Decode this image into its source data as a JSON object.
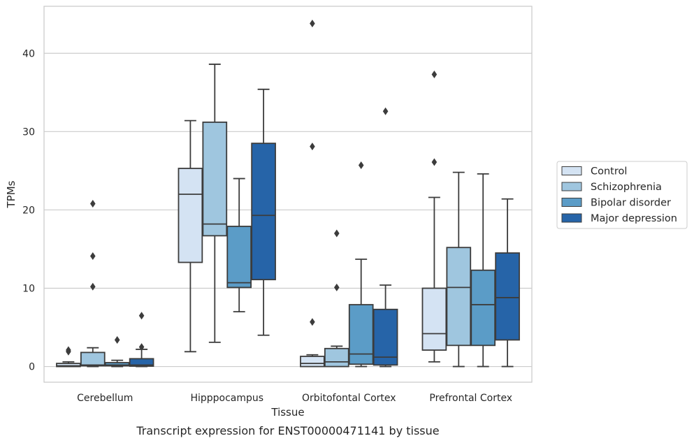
{
  "chart_data": {
    "type": "boxplot",
    "caption": "Transcript expression for ENST00000471141 by tissue",
    "xlabel": "Tissue",
    "ylabel": "TPMs",
    "ylim": [
      -2,
      46
    ],
    "yticks": [
      0,
      10,
      20,
      30,
      40
    ],
    "grid": "horizontal",
    "legend_position": "right",
    "categories": [
      "Cerebellum",
      "Hipppocampus",
      "Orbitofontal Cortex",
      "Prefrontal Cortex"
    ],
    "series": [
      {
        "name": "Control",
        "color": "#d4e3f3",
        "boxes": [
          {
            "whislo": 0,
            "q1": 0,
            "med": 0.1,
            "q3": 0.4,
            "whishi": 0.6,
            "fliers": [
              1.9,
              2.1
            ]
          },
          {
            "whislo": 1.9,
            "q1": 13.3,
            "med": 22.0,
            "q3": 25.3,
            "whishi": 31.4,
            "fliers": []
          },
          {
            "whislo": 0,
            "q1": 0,
            "med": 0.4,
            "q3": 1.3,
            "whishi": 1.5,
            "fliers": [
              5.7,
              28.1,
              43.8
            ]
          },
          {
            "whislo": 0.6,
            "q1": 2.1,
            "med": 4.2,
            "q3": 10.0,
            "whishi": 21.6,
            "fliers": [
              26.1,
              37.3
            ]
          }
        ]
      },
      {
        "name": "Schizophrenia",
        "color": "#9fc6df",
        "boxes": [
          {
            "whislo": 0,
            "q1": 0.1,
            "med": 0.2,
            "q3": 1.8,
            "whishi": 2.4,
            "fliers": [
              10.2,
              14.1,
              20.8
            ]
          },
          {
            "whislo": 3.1,
            "q1": 16.7,
            "med": 18.2,
            "q3": 31.2,
            "whishi": 38.6,
            "fliers": []
          },
          {
            "whislo": 0,
            "q1": 0,
            "med": 0.6,
            "q3": 2.3,
            "whishi": 2.6,
            "fliers": [
              10.1,
              17.0
            ]
          },
          {
            "whislo": 0,
            "q1": 2.7,
            "med": 10.1,
            "q3": 15.2,
            "whishi": 24.8,
            "fliers": []
          }
        ]
      },
      {
        "name": "Bipolar disorder",
        "color": "#5b9cc7",
        "boxes": [
          {
            "whislo": 0,
            "q1": 0.1,
            "med": 0.2,
            "q3": 0.5,
            "whishi": 0.8,
            "fliers": [
              3.4
            ]
          },
          {
            "whislo": 7.0,
            "q1": 10.1,
            "med": 10.7,
            "q3": 17.9,
            "whishi": 24.0,
            "fliers": []
          },
          {
            "whislo": 0,
            "q1": 0.3,
            "med": 1.6,
            "q3": 7.9,
            "whishi": 13.7,
            "fliers": [
              25.7
            ]
          },
          {
            "whislo": 0,
            "q1": 2.7,
            "med": 7.9,
            "q3": 12.3,
            "whishi": 24.6,
            "fliers": []
          }
        ]
      },
      {
        "name": "Major depression",
        "color": "#2664a8",
        "boxes": [
          {
            "whislo": 0,
            "q1": 0.05,
            "med": 0.2,
            "q3": 1.0,
            "whishi": 2.2,
            "fliers": [
              2.5,
              6.5
            ]
          },
          {
            "whislo": 4.0,
            "q1": 11.1,
            "med": 19.3,
            "q3": 28.5,
            "whishi": 35.4,
            "fliers": []
          },
          {
            "whislo": 0,
            "q1": 0.2,
            "med": 1.2,
            "q3": 7.3,
            "whishi": 10.4,
            "fliers": [
              32.6
            ]
          },
          {
            "whislo": 0,
            "q1": 3.4,
            "med": 8.8,
            "q3": 14.5,
            "whishi": 21.4,
            "fliers": []
          }
        ]
      }
    ]
  }
}
